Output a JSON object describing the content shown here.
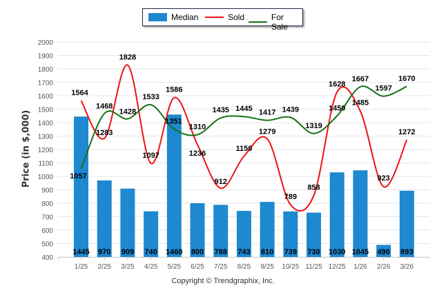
{
  "legend": {
    "items": [
      {
        "name": "Median",
        "type": "bar",
        "color": "#1e88d0"
      },
      {
        "name": "Sold",
        "type": "line",
        "color": "#ee1111"
      },
      {
        "name": "For Sale",
        "type": "line",
        "color": "#137113"
      }
    ]
  },
  "footer": {
    "copyright": "Copyright © Trendgraphix, Inc."
  },
  "chart_data": {
    "type": "bar+line",
    "title": "",
    "xlabel": "",
    "ylabel": "Price (in $,000)",
    "ylim": [
      400,
      2000
    ],
    "yticks": [
      400,
      500,
      600,
      700,
      800,
      900,
      1000,
      1100,
      1200,
      1300,
      1400,
      1500,
      1600,
      1700,
      1800,
      1900,
      2000
    ],
    "grid": true,
    "legend_position": "top-center",
    "categories": [
      "1/25",
      "2/25",
      "3/25",
      "4/25",
      "5/25",
      "6/25",
      "7/25",
      "8/25",
      "9/25",
      "10/25",
      "11/25",
      "12/25",
      "1/26",
      "2/26",
      "3/26"
    ],
    "series": [
      {
        "name": "Median",
        "type": "bar",
        "color": "#1e88d0",
        "values": [
          1445,
          970,
          909,
          740,
          1460,
          800,
          788,
          743,
          810,
          739,
          730,
          1030,
          1045,
          490,
          893
        ]
      },
      {
        "name": "Sold",
        "type": "line",
        "color": "#ee1111",
        "values": [
          1564,
          1283,
          1828,
          1097,
          1586,
          1236,
          912,
          1150,
          1279,
          789,
          858,
          1628,
          1485,
          923,
          1272
        ]
      },
      {
        "name": "For Sale",
        "type": "line",
        "color": "#137113",
        "values": [
          1057,
          1468,
          1428,
          1533,
          1351,
          1310,
          1435,
          1445,
          1417,
          1439,
          1319,
          1450,
          1667,
          1597,
          1670
        ]
      }
    ]
  }
}
